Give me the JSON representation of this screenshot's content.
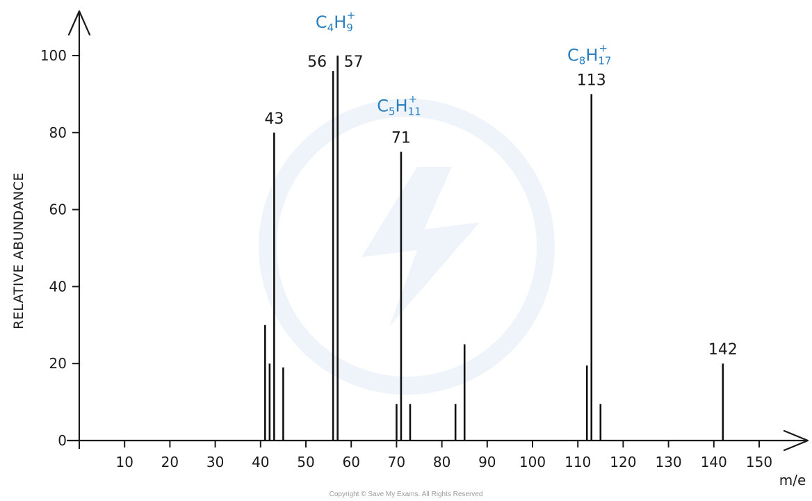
{
  "chart_data": {
    "type": "bar",
    "xlabel": "m/e",
    "ylabel": "RELATIVE ABUNDANCE",
    "xlim": [
      0,
      150
    ],
    "ylim": [
      0,
      100
    ],
    "x_ticks": [
      10,
      20,
      30,
      40,
      50,
      60,
      70,
      80,
      90,
      100,
      110,
      120,
      130,
      140,
      150
    ],
    "y_ticks": [
      0,
      20,
      40,
      60,
      80,
      100
    ],
    "peaks": [
      {
        "x": 41,
        "y": 30
      },
      {
        "x": 42,
        "y": 20
      },
      {
        "x": 43,
        "y": 80,
        "label": "43"
      },
      {
        "x": 45,
        "y": 19
      },
      {
        "x": 56,
        "y": 96,
        "label": "56"
      },
      {
        "x": 57,
        "y": 100,
        "label": "57"
      },
      {
        "x": 70,
        "y": 9.5
      },
      {
        "x": 71,
        "y": 75,
        "label": "71"
      },
      {
        "x": 73,
        "y": 9.5
      },
      {
        "x": 83,
        "y": 9.5
      },
      {
        "x": 85,
        "y": 25
      },
      {
        "x": 112,
        "y": 19.5
      },
      {
        "x": 113,
        "y": 90,
        "label": "113"
      },
      {
        "x": 115,
        "y": 9.5
      },
      {
        "x": 142,
        "y": 20,
        "label": "142"
      }
    ],
    "ion_annotations": [
      {
        "peak": 57,
        "element1": "C",
        "count1": "4",
        "element2": "H",
        "count2": "9",
        "charge": "+"
      },
      {
        "peak": 71,
        "element1": "C",
        "count1": "5",
        "element2": "H",
        "count2": "11",
        "charge": "+"
      },
      {
        "peak": 113,
        "element1": "C",
        "count1": "8",
        "element2": "H",
        "count2": "17",
        "charge": "+"
      }
    ]
  },
  "colors": {
    "axis": "#1a1a1a",
    "bar": "#111111",
    "ion_label": "#2a7fc0",
    "watermark": "#eef4f9"
  },
  "footer": {
    "copyright": "Copyright © Save My Exams. All Rights Reserved"
  }
}
